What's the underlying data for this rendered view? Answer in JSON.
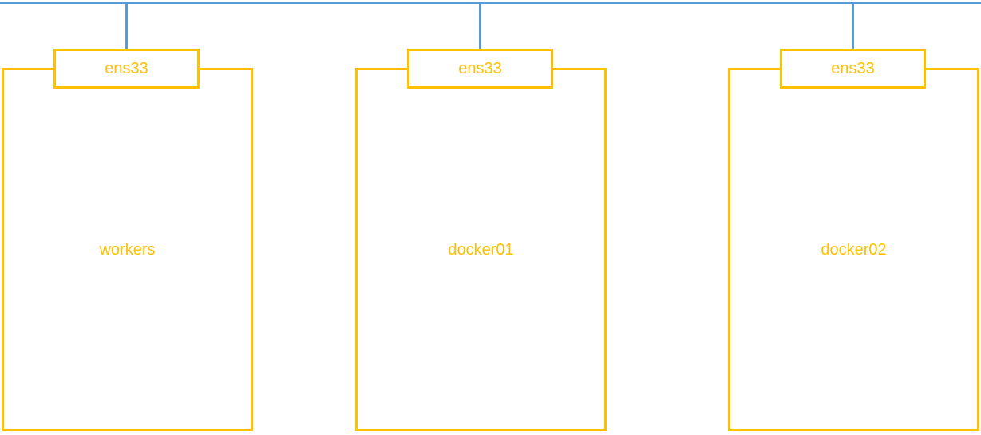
{
  "colors": {
    "network_line": "#5b9bd5",
    "host_border": "#ffc000",
    "host_text": "#ffc000",
    "background": "#ffffff"
  },
  "hosts": [
    {
      "name": "workers",
      "interface": "ens33"
    },
    {
      "name": "docker01",
      "interface": "ens33"
    },
    {
      "name": "docker02",
      "interface": "ens33"
    }
  ]
}
